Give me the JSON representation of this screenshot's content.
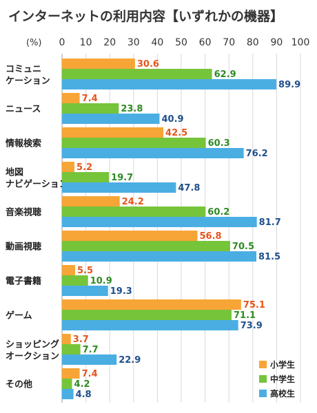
{
  "chart_data": {
    "type": "bar",
    "orientation": "horizontal",
    "title": "インターネットの利用内容【いずれかの機器】",
    "unit_label": "(%)",
    "xlim": [
      0,
      100
    ],
    "ticks": [
      0,
      10,
      20,
      30,
      40,
      50,
      60,
      70,
      80,
      90,
      100
    ],
    "grid": true,
    "legend_position": "bottom-right",
    "categories": [
      [
        "コミュニ",
        "ケーション"
      ],
      [
        "ニュース"
      ],
      [
        "情報検索"
      ],
      [
        "地図",
        "ナビゲーション"
      ],
      [
        "音楽視聴"
      ],
      [
        "動画視聴"
      ],
      [
        "電子書籍"
      ],
      [
        "ゲーム"
      ],
      [
        "ショッピング",
        "オークション"
      ],
      [
        "その他"
      ]
    ],
    "series": [
      {
        "name": "小学生",
        "color": "#f7a536",
        "label_color": "#e5541a",
        "values": [
          30.6,
          7.4,
          42.5,
          5.2,
          24.2,
          56.8,
          5.5,
          75.1,
          3.7,
          7.4
        ]
      },
      {
        "name": "中学生",
        "color": "#76c43a",
        "label_color": "#2e8a24",
        "values": [
          62.9,
          23.8,
          60.3,
          19.7,
          60.2,
          70.5,
          10.9,
          71.1,
          7.7,
          4.2
        ]
      },
      {
        "name": "高校生",
        "color": "#4aaee3",
        "label_color": "#1e4f8c",
        "values": [
          89.9,
          40.9,
          76.2,
          47.8,
          81.7,
          81.5,
          19.3,
          73.9,
          22.9,
          4.8
        ]
      }
    ]
  }
}
